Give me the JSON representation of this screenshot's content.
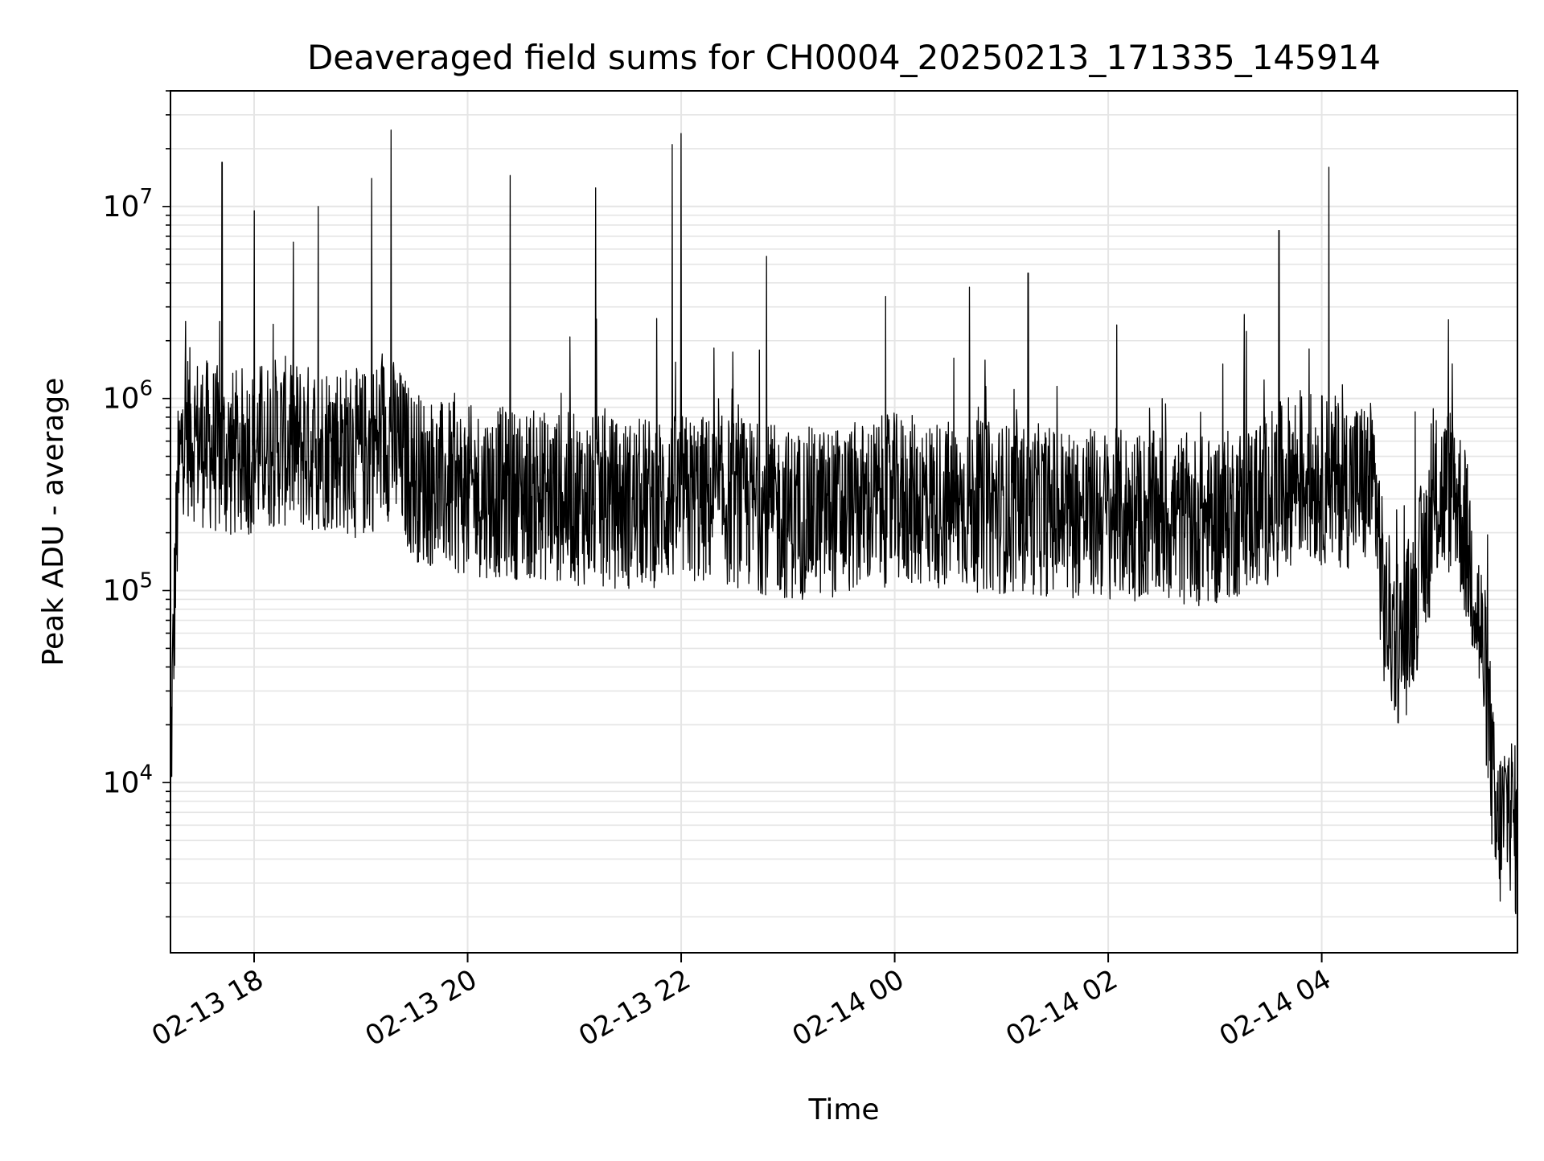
{
  "chart_data": {
    "type": "line",
    "title": "Deaveraged field sums for CH0004_20250213_171335_145914",
    "xlabel": "Time",
    "ylabel": "Peak ADU - average",
    "yscale": "log",
    "xlim": [
      "2025-02-13 17:13",
      "2025-02-14 05:50"
    ],
    "ylim": [
      1300,
      40000000
    ],
    "grid": true,
    "line_color": "#000000",
    "grid_color": "#e5e5e5",
    "x_ticks": [
      {
        "value": "2025-02-13 18:00",
        "label": "02-13 18"
      },
      {
        "value": "2025-02-13 20:00",
        "label": "02-13 20"
      },
      {
        "value": "2025-02-13 22:00",
        "label": "02-13 22"
      },
      {
        "value": "2025-02-14 00:00",
        "label": "02-14 00"
      },
      {
        "value": "2025-02-14 02:00",
        "label": "02-14 02"
      },
      {
        "value": "2025-02-14 04:00",
        "label": "02-14 04"
      }
    ],
    "y_ticks": [
      {
        "value": 10000,
        "label_base": "10",
        "label_exp": "4"
      },
      {
        "value": 100000,
        "label_base": "10",
        "label_exp": "5"
      },
      {
        "value": 1000000,
        "label_base": "10",
        "label_exp": "6"
      },
      {
        "value": 10000000,
        "label_base": "10",
        "label_exp": "7"
      }
    ],
    "series": [
      {
        "points": [
          [
            "2025-02-13 17:13",
            11000
          ],
          [
            "2025-02-13 17:15",
            70000
          ],
          [
            "2025-02-13 17:17",
            300000
          ],
          [
            "2025-02-13 17:20",
            700000
          ],
          [
            "2025-02-13 17:30",
            600000
          ],
          [
            "2025-02-13 17:45",
            500000
          ],
          [
            "2025-02-13 18:00",
            550000
          ],
          [
            "2025-02-13 18:15",
            600000
          ],
          [
            "2025-02-13 18:30",
            550000
          ],
          [
            "2025-02-13 18:45",
            580000
          ],
          [
            "2025-02-13 19:00",
            500000
          ],
          [
            "2025-02-13 19:15",
            650000
          ],
          [
            "2025-02-13 19:30",
            400000
          ],
          [
            "2025-02-13 19:45",
            350000
          ],
          [
            "2025-02-13 20:00",
            330000
          ],
          [
            "2025-02-13 20:30",
            320000
          ],
          [
            "2025-02-13 21:00",
            300000
          ],
          [
            "2025-02-13 21:30",
            280000
          ],
          [
            "2025-02-13 22:00",
            300000
          ],
          [
            "2025-02-13 22:30",
            290000
          ],
          [
            "2025-02-13 23:00",
            250000
          ],
          [
            "2025-02-13 23:30",
            260000
          ],
          [
            "2025-02-14 00:00",
            300000
          ],
          [
            "2025-02-14 00:30",
            280000
          ],
          [
            "2025-02-14 01:00",
            270000
          ],
          [
            "2025-02-14 01:30",
            260000
          ],
          [
            "2025-02-14 02:00",
            250000
          ],
          [
            "2025-02-14 02:30",
            240000
          ],
          [
            "2025-02-14 03:00",
            230000
          ],
          [
            "2025-02-14 03:30",
            300000
          ],
          [
            "2025-02-14 03:45",
            400000
          ],
          [
            "2025-02-14 04:00",
            380000
          ],
          [
            "2025-02-14 04:30",
            350000
          ],
          [
            "2025-02-14 04:35",
            80000
          ],
          [
            "2025-02-14 04:45",
            50000
          ],
          [
            "2025-02-14 04:55",
            120000
          ],
          [
            "2025-02-14 05:05",
            300000
          ],
          [
            "2025-02-14 05:15",
            350000
          ],
          [
            "2025-02-14 05:25",
            120000
          ],
          [
            "2025-02-14 05:33",
            30000
          ],
          [
            "2025-02-14 05:38",
            5000
          ],
          [
            "2025-02-14 05:45",
            8000
          ],
          [
            "2025-02-14 05:50",
            5000
          ]
        ],
        "spikes": [
          [
            "2025-02-13 17:42",
            17000000
          ],
          [
            "2025-02-13 18:00",
            9500000
          ],
          [
            "2025-02-13 18:36",
            10000000
          ],
          [
            "2025-02-13 19:06",
            14000000
          ],
          [
            "2025-02-13 19:17",
            25000000
          ],
          [
            "2025-02-13 20:24",
            14500000
          ],
          [
            "2025-02-13 21:12",
            12500000
          ],
          [
            "2025-02-13 21:55",
            21000000
          ],
          [
            "2025-02-13 22:00",
            24000000
          ],
          [
            "2025-02-13 22:48",
            5500000
          ],
          [
            "2025-02-14 03:36",
            7500000
          ],
          [
            "2025-02-14 04:04",
            16000000
          ],
          [
            "2025-02-14 01:15",
            4500000
          ],
          [
            "2025-02-14 00:42",
            3800000
          ],
          [
            "2025-02-13 23:55",
            3400000
          ]
        ]
      }
    ]
  }
}
